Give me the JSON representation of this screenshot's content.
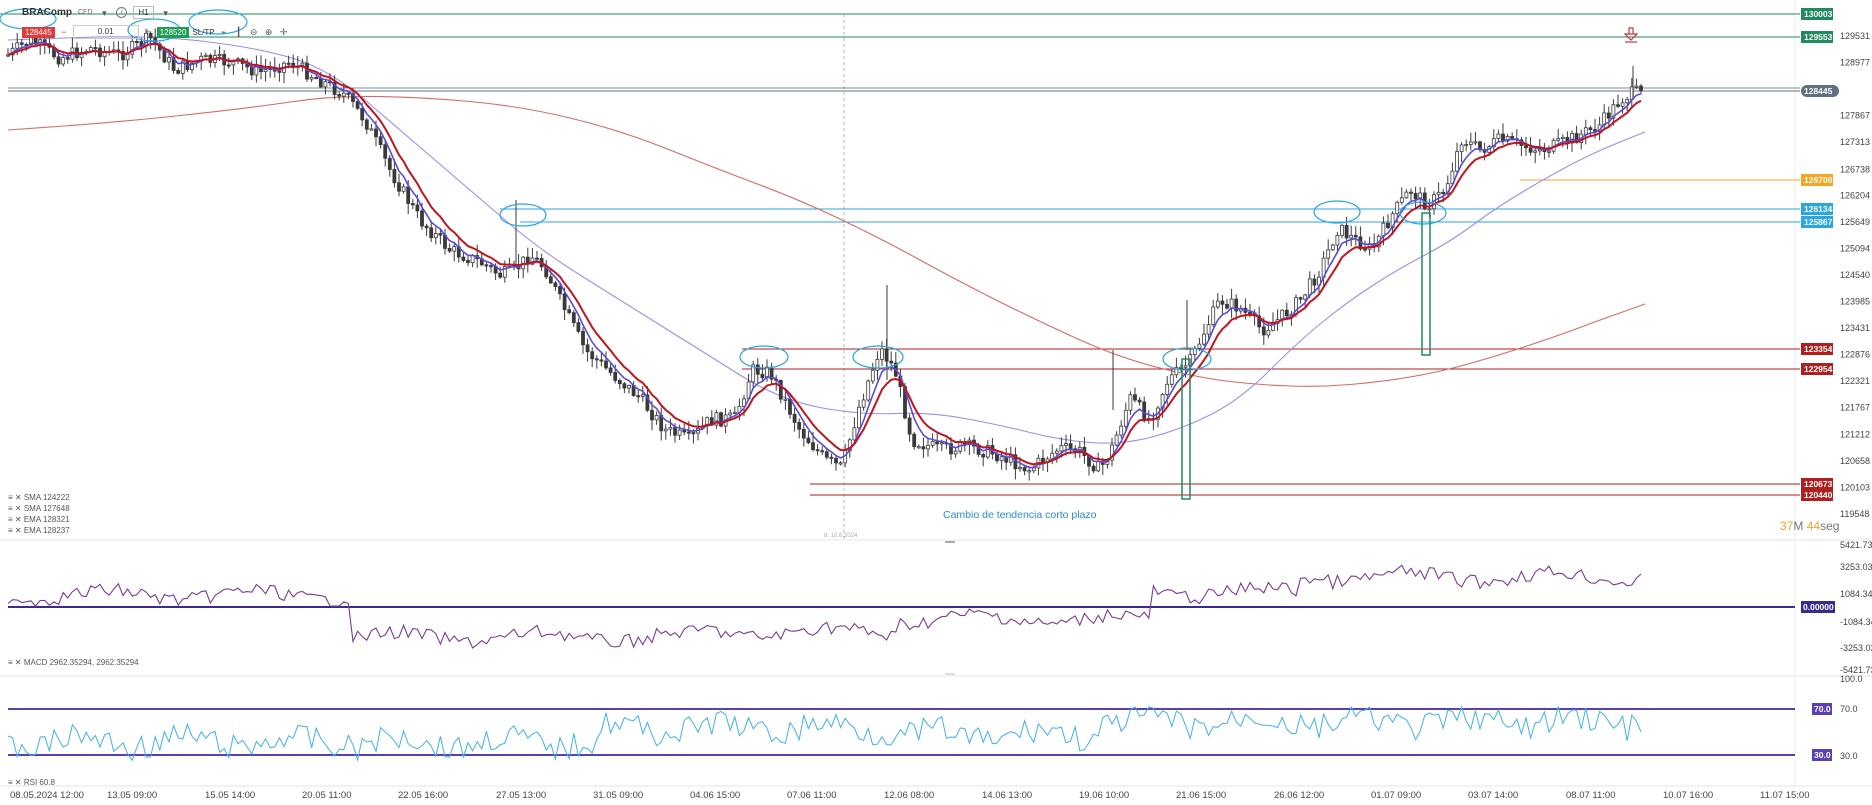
{
  "toolbar": {
    "symbol": "BRAComp",
    "symbol_sub": "CFD",
    "timeframe": "H1",
    "sell_price": "128445",
    "minus": "−",
    "lot_size": "0.01",
    "plus": "+",
    "buy_price": "128520",
    "sltp": "SL/TP",
    "icons": [
      "chevron-down-icon",
      "info-icon",
      "chevron-down-icon",
      "line-chart-icon",
      "candles-icon",
      "zoom-out-icon",
      "zoom-in-icon",
      "crosshair-icon"
    ]
  },
  "price_axis": {
    "ticks": [
      "129531",
      "128977",
      "127867",
      "127313",
      "126738",
      "126204",
      "125649",
      "125094",
      "124540",
      "123985",
      "123431",
      "122876",
      "122321",
      "121767",
      "121212",
      "120658",
      "120103",
      "119548"
    ],
    "levels": [
      {
        "label": "130003",
        "color": "#1f8a5e"
      },
      {
        "label": "129553",
        "color": "#1f8a5e"
      },
      {
        "label": "128445",
        "color": "#607080"
      },
      {
        "label": "126700",
        "color": "#f5a623"
      },
      {
        "label": "126134",
        "color": "#2aa7e0"
      },
      {
        "label": "125867",
        "color": "#2aa7e0"
      },
      {
        "label": "123354",
        "color": "#b01e1e"
      },
      {
        "label": "122954",
        "color": "#b01e1e"
      },
      {
        "label": "120673",
        "color": "#b01e1e"
      },
      {
        "label": "120440",
        "color": "#b01e1e"
      }
    ]
  },
  "macd_axis": {
    "ticks": [
      "5421.73",
      "3253.03",
      "1084.34",
      "-1084.34",
      "-3253.03",
      "-5421.73"
    ],
    "zero_label": "0.00000"
  },
  "rsi_axis": {
    "ticks": [
      "100.0",
      "30.0"
    ],
    "upper_label": "70.0",
    "lower_label": "30.0",
    "upper_text": "70.0"
  },
  "time_axis": [
    "08.05.2024 12:00",
    "13.05 09:00",
    "15.05 14:00",
    "20.05 11:00",
    "22.05 16:00",
    "27.05 13:00",
    "31.05 09:00",
    "04.06 15:00",
    "07.06 11:00",
    "12.06 08:00",
    "14.06 13:00",
    "19.06 10:00",
    "21.06 15:00",
    "26.06 12:00",
    "01.07 09:00",
    "03.07 14:00",
    "08.07 11:00",
    "10.07 16:00",
    "11.07 15:00"
  ],
  "legends": {
    "sma1": "SMA 124222",
    "sma2": "SMA 127648",
    "ema1": "EMA 128321",
    "ema2": "EMA 128237",
    "macd": "MACD 2962.35294, 2962.35294",
    "rsi": "RSI 60.8"
  },
  "annotation": "Cambio de tendencia corto plazo",
  "vline_label": "8: 10.6.2024",
  "timer": {
    "min": "37",
    "min_unit": "M",
    "sec": "44",
    "sec_unit": "seg"
  },
  "colors": {
    "candle": "#3a3a3a",
    "ema_red": "#c0151f",
    "ema_purple": "#5b4cd6",
    "sma_lavender": "#9b8fe6",
    "sma_long": "#d46a6a",
    "macd": "#7a3b8f",
    "rsi": "#3fb1e8",
    "rsi_level": "#5b3fb5",
    "green": "#1f8a5e",
    "blue": "#2aa7e0",
    "red": "#b01e1e",
    "orange": "#f5a623"
  }
}
